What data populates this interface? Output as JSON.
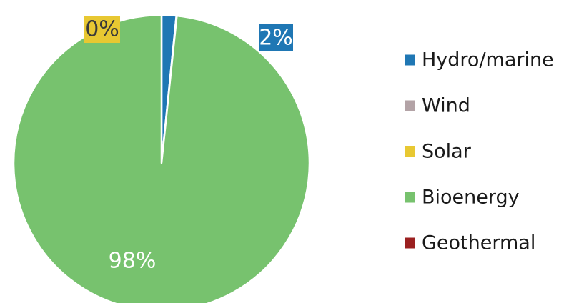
{
  "chart_data": {
    "type": "pie",
    "title": "",
    "slices": [
      {
        "name": "Hydro/marine",
        "value": 1.6,
        "label": "2%",
        "color": "#1f77b4"
      },
      {
        "name": "Wind",
        "value": 0.0,
        "label": "",
        "color": "#b3a3a6"
      },
      {
        "name": "Solar",
        "value": 0.05,
        "label": "0%",
        "color": "#e8c832"
      },
      {
        "name": "Bioenergy",
        "value": 98.35,
        "label": "98%",
        "color": "#77c26e"
      },
      {
        "name": "Geothermal",
        "value": 0.0,
        "label": "",
        "color": "#9b2020"
      }
    ],
    "legend_position": "right",
    "legend_order": [
      "Hydro/marine",
      "Wind",
      "Solar",
      "Bioenergy",
      "Geothermal"
    ],
    "start_angle_deg": 0,
    "direction": "clockwise"
  }
}
